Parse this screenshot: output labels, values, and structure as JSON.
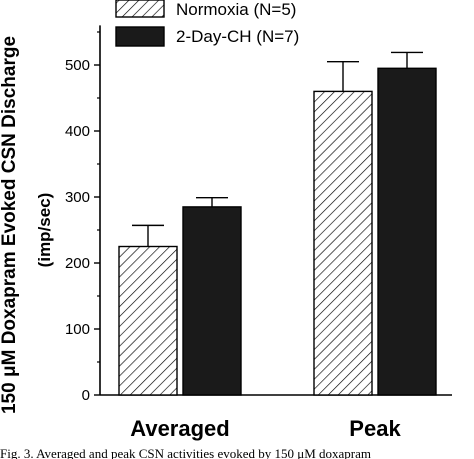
{
  "chart_data": {
    "type": "bar",
    "categories": [
      "Averaged",
      "Peak"
    ],
    "series": [
      {
        "name": "Normoxia (N=5)",
        "values": [
          225,
          460
        ],
        "errors": [
          32,
          45
        ],
        "fill": "hatched"
      },
      {
        "name": "2-Day-CH (N=7)",
        "values": [
          285,
          495
        ],
        "errors": [
          14,
          24
        ],
        "fill": "solid"
      }
    ],
    "ylabel_line1": "150 μM Doxapram Evoked CSN Discharge",
    "ylabel_line2": "(imp/sec)",
    "yticks": [
      "0",
      "100",
      "200",
      "300",
      "400",
      "500"
    ],
    "ylim": [
      0,
      560
    ],
    "legend_position": "top-left",
    "error_bars": "upper",
    "grid": false
  },
  "caption_fragment": "Fig. 3. Averaged and peak CSN activities evoked by 150 μM doxapram",
  "colors": {
    "solid_bar": "#1a1a1a",
    "axis": "#000000",
    "background": "#ffffff"
  }
}
